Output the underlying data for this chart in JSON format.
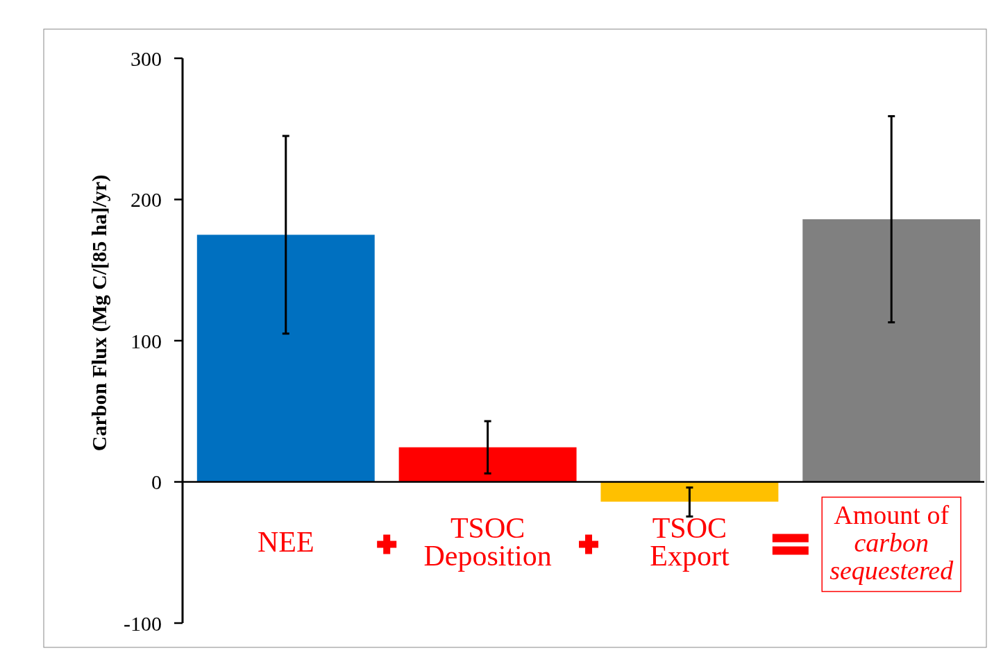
{
  "chart_data": {
    "type": "bar",
    "ylabel": "Carbon Flux (Mg C/[85 ha]/yr)",
    "categories": [
      "NEE",
      "TSOC Deposition",
      "TSOC Export",
      "Amount of carbon sequestered"
    ],
    "values": [
      175,
      24.5,
      -14,
      186
    ],
    "colors": [
      "#0070c0",
      "#ff0000",
      "#ffc000",
      "#808080"
    ],
    "errors": [
      [
        105,
        245
      ],
      [
        6,
        43
      ],
      [
        -24.5,
        -4
      ],
      [
        113,
        259
      ]
    ],
    "ylim": [
      -100,
      300
    ],
    "yticks": [
      300,
      200,
      100,
      0,
      -100
    ],
    "grid": false
  }
}
